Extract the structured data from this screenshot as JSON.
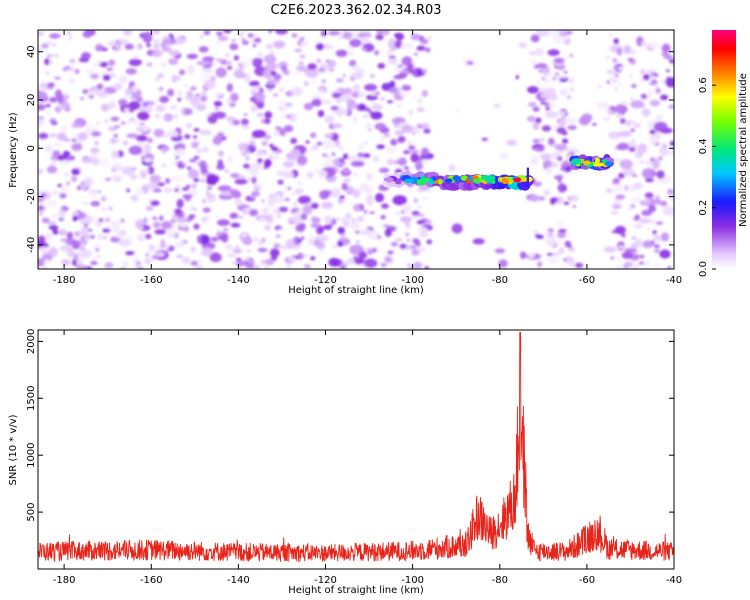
{
  "figure_title": "C2E6.2023.362.02.34.R03",
  "chart_data": [
    {
      "type": "heatmap",
      "xlabel": "Height of straight line (km)",
      "ylabel": "Frequency (Hz)",
      "xlim": [
        -186,
        -40
      ],
      "ylim": [
        -50,
        49
      ],
      "x_ticks": [
        -180,
        -160,
        -140,
        -120,
        -100,
        -80,
        -60,
        -40
      ],
      "y_ticks": [
        -40,
        -20,
        0,
        20,
        40
      ],
      "colorbar": {
        "label": "Normalized spectral amplitude",
        "range": [
          0.0,
          0.78
        ],
        "ticks": [
          0.0,
          0.2,
          0.4,
          0.6
        ],
        "colormap": "rainbow (white-violet-blue-cyan-green-yellow-red-magenta)"
      },
      "background_noise": {
        "amplitude_range": [
          0.0,
          0.15
        ],
        "extent_km": [
          -186,
          -40
        ],
        "blank_bands_km": [
          [
            -96,
            -73
          ],
          [
            -63,
            -55
          ]
        ]
      },
      "features": [
        {
          "name": "main echo trail",
          "x_range_km": [
            -106,
            -73
          ],
          "frequency_hz": -13,
          "peak_amplitude": 0.75,
          "peak_at_km": -76
        },
        {
          "name": "secondary echo",
          "x_range_km": [
            -63,
            -55
          ],
          "frequency_hz": -6,
          "peak_amplitude": 0.6,
          "peak_at_km": -60
        }
      ],
      "colors": {
        "low": "#e6ccff",
        "mid": "#8a2be2",
        "high": "#ff0000"
      }
    },
    {
      "type": "line",
      "xlabel": "Height of straight line (km)",
      "ylabel": "SNR (10 * v/v)",
      "xlim": [
        -186,
        -40
      ],
      "ylim": [
        0,
        2100
      ],
      "x_ticks": [
        -180,
        -160,
        -140,
        -120,
        -100,
        -80,
        -60,
        -40
      ],
      "y_ticks": [
        500,
        1000,
        1500,
        2000
      ],
      "line_color": "#e8241a",
      "noise_floor": 180,
      "key_points": [
        {
          "x": -186,
          "y": 190
        },
        {
          "x": -160,
          "y": 210
        },
        {
          "x": -140,
          "y": 185
        },
        {
          "x": -120,
          "y": 175
        },
        {
          "x": -100,
          "y": 200
        },
        {
          "x": -88,
          "y": 260
        },
        {
          "x": -85,
          "y": 700
        },
        {
          "x": -82,
          "y": 450
        },
        {
          "x": -79,
          "y": 650
        },
        {
          "x": -76.5,
          "y": 900
        },
        {
          "x": -75.3,
          "y": 2080
        },
        {
          "x": -74.2,
          "y": 1150
        },
        {
          "x": -73.5,
          "y": 350
        },
        {
          "x": -72,
          "y": 200
        },
        {
          "x": -65,
          "y": 190
        },
        {
          "x": -60,
          "y": 320
        },
        {
          "x": -58,
          "y": 480
        },
        {
          "x": -55,
          "y": 220
        },
        {
          "x": -40,
          "y": 190
        }
      ]
    }
  ]
}
